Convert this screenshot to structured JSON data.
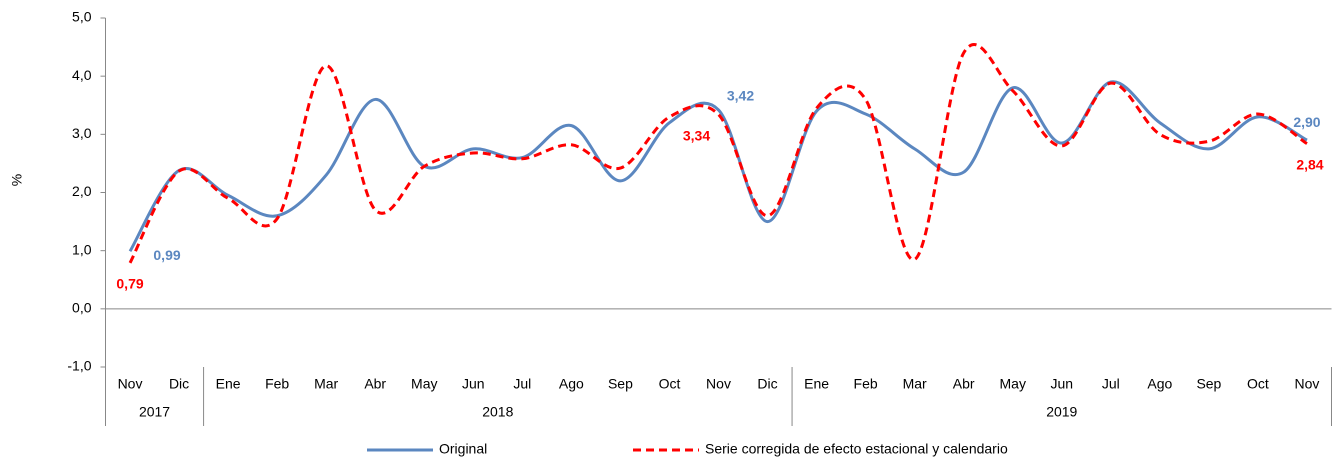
{
  "chart_data": {
    "type": "line",
    "y_label": "%",
    "categories": [
      "Nov",
      "Dic",
      "Ene",
      "Feb",
      "Mar",
      "Abr",
      "May",
      "Jun",
      "Jul",
      "Ago",
      "Sep",
      "Oct",
      "Nov",
      "Dic",
      "Ene",
      "Feb",
      "Mar",
      "Abr",
      "May",
      "Jun",
      "Jul",
      "Ago",
      "Sep",
      "Oct",
      "Nov"
    ],
    "year_groups": [
      {
        "label": "2017",
        "start": 0,
        "end": 1
      },
      {
        "label": "2018",
        "start": 2,
        "end": 13
      },
      {
        "label": "2019",
        "start": 14,
        "end": 24
      }
    ],
    "ylim": [
      -1,
      5
    ],
    "yticks": [
      {
        "value": -1,
        "label": "-1,0"
      },
      {
        "value": 0,
        "label": "0,0"
      },
      {
        "value": 1,
        "label": "1,0"
      },
      {
        "value": 2,
        "label": "2,0"
      },
      {
        "value": 3,
        "label": "3,0"
      },
      {
        "value": 4,
        "label": "4,0"
      },
      {
        "value": 5,
        "label": "5,0"
      }
    ],
    "series": [
      {
        "name": "Original",
        "color": "#5b87c0",
        "dash": false,
        "values": [
          0.99,
          2.38,
          1.95,
          1.6,
          2.3,
          3.6,
          2.45,
          2.75,
          2.6,
          3.15,
          2.2,
          3.2,
          3.42,
          1.5,
          3.4,
          3.35,
          2.75,
          2.35,
          3.8,
          2.85,
          3.9,
          3.2,
          2.75,
          3.3,
          2.9
        ],
        "value_labels": [
          "0,99",
          null,
          null,
          null,
          null,
          null,
          null,
          null,
          null,
          null,
          null,
          null,
          "3,42",
          null,
          null,
          null,
          null,
          null,
          null,
          null,
          null,
          null,
          null,
          null,
          "2,90"
        ]
      },
      {
        "name": "Serie corregida de efecto estacional y calendario",
        "color": "#ff0000",
        "dash": true,
        "values": [
          0.79,
          2.37,
          1.9,
          1.55,
          4.18,
          1.7,
          2.45,
          2.68,
          2.58,
          2.82,
          2.42,
          3.3,
          3.34,
          1.6,
          3.45,
          3.6,
          0.85,
          4.4,
          3.75,
          2.8,
          3.88,
          3.0,
          2.88,
          3.35,
          2.84
        ],
        "value_labels": [
          "0,79",
          null,
          null,
          null,
          null,
          null,
          null,
          null,
          null,
          null,
          null,
          null,
          "3,34",
          null,
          null,
          null,
          null,
          null,
          null,
          null,
          null,
          null,
          null,
          null,
          "2,84"
        ]
      }
    ]
  }
}
